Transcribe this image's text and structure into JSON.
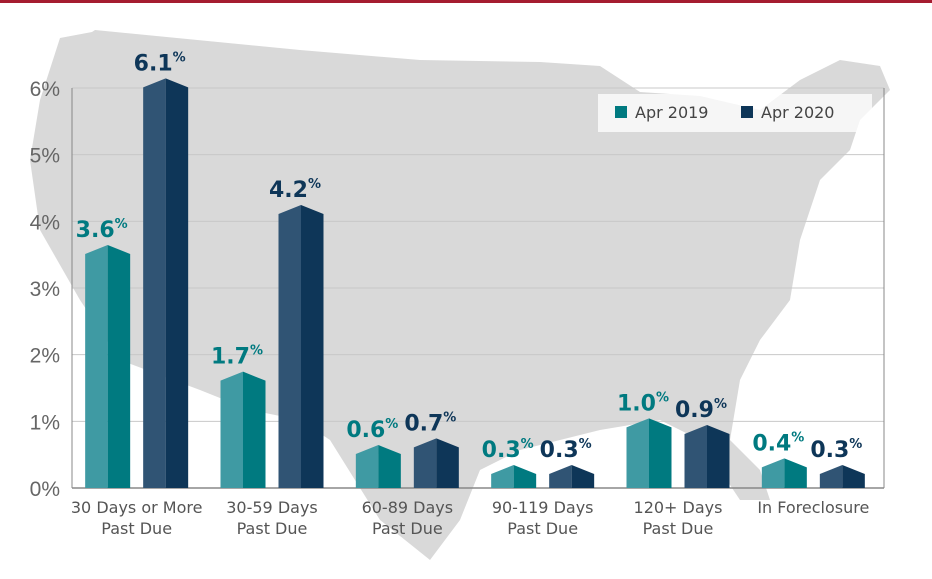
{
  "chart_data": {
    "type": "bar",
    "title": "",
    "xlabel": "",
    "ylabel": "",
    "ylim": [
      0,
      6
    ],
    "yticks": [
      "0%",
      "1%",
      "2%",
      "3%",
      "4%",
      "5%",
      "6%"
    ],
    "grid": true,
    "legend_placement": "top-right",
    "categories": [
      [
        "30 Days or More",
        "Past Due"
      ],
      [
        "30-59 Days",
        "Past Due"
      ],
      [
        "60-89 Days",
        "Past Due"
      ],
      [
        "90-119 Days",
        "Past Due"
      ],
      [
        "120+ Days",
        "Past Due"
      ],
      [
        "In Foreclosure"
      ]
    ],
    "series": [
      {
        "name": "Apr 2019",
        "values": [
          3.6,
          1.7,
          0.6,
          0.3,
          1.0,
          0.4
        ],
        "labels": [
          "3.6",
          "1.7",
          "0.6",
          "0.3",
          "1.0",
          "0.4"
        ],
        "color": "#007a80",
        "light": "#3f9aa3"
      },
      {
        "name": "Apr 2020",
        "values": [
          6.1,
          4.2,
          0.7,
          0.3,
          0.9,
          0.3
        ],
        "labels": [
          "6.1",
          "4.2",
          "0.7",
          "0.3",
          "0.9",
          "0.3"
        ],
        "color": "#0e3658",
        "light": "#305474"
      }
    ],
    "percent_sign": "%",
    "background": "us-map-silhouette",
    "accent": "#a51c30"
  }
}
